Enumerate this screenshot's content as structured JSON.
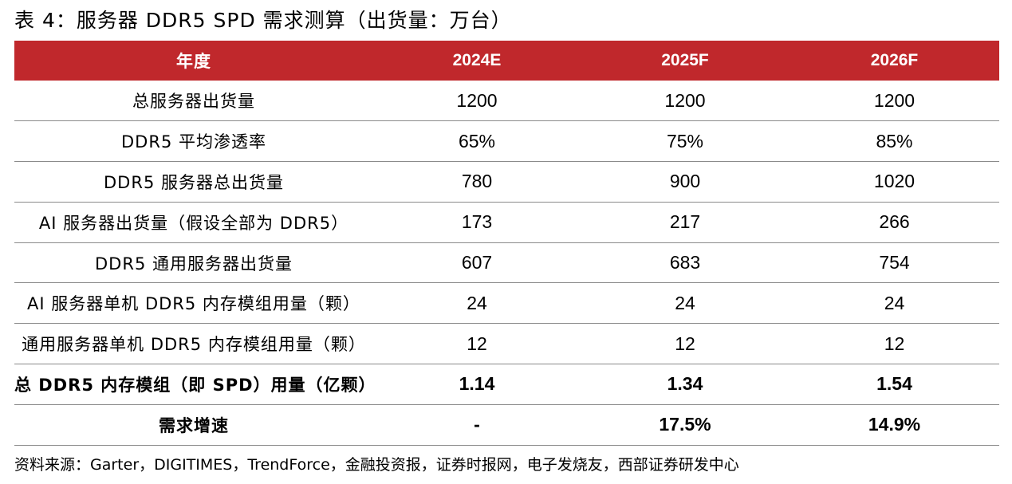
{
  "title": "表 4：服务器 DDR5 SPD 需求测算（出货量：万台）",
  "table": {
    "header": [
      "年度",
      "2024E",
      "2025F",
      "2026F"
    ],
    "rows": [
      {
        "label": "总服务器出货量",
        "values": [
          "1200",
          "1200",
          "1200"
        ]
      },
      {
        "label": "DDR5 平均渗透率",
        "values": [
          "65%",
          "75%",
          "85%"
        ]
      },
      {
        "label": "DDR5 服务器总出货量",
        "values": [
          "780",
          "900",
          "1020"
        ]
      },
      {
        "label": "AI 服务器出货量（假设全部为 DDR5）",
        "values": [
          "173",
          "217",
          "266"
        ]
      },
      {
        "label": "DDR5 通用服务器出货量",
        "values": [
          "607",
          "683",
          "754"
        ]
      },
      {
        "label": "AI 服务器单机 DDR5 内存模组用量（颗）",
        "values": [
          "24",
          "24",
          "24"
        ]
      },
      {
        "label": "通用服务器单机 DDR5 内存模组用量（颗）",
        "values": [
          "12",
          "12",
          "12"
        ]
      },
      {
        "label": "总 DDR5 内存模组（即 SPD）用量（亿颗）",
        "values": [
          "1.14",
          "1.34",
          "1.54"
        ]
      },
      {
        "label": "需求增速",
        "values": [
          "-",
          "17.5%",
          "14.9%"
        ]
      }
    ]
  },
  "source": "资料来源：Garter，DIGITIMES，TrendForce，金融投资报，证券时报网，电子发烧友，西部证券研发中心",
  "colors": {
    "header_bg": "#c0282c",
    "header_text": "#ffffff",
    "row_divider": "#8a8a8a"
  }
}
